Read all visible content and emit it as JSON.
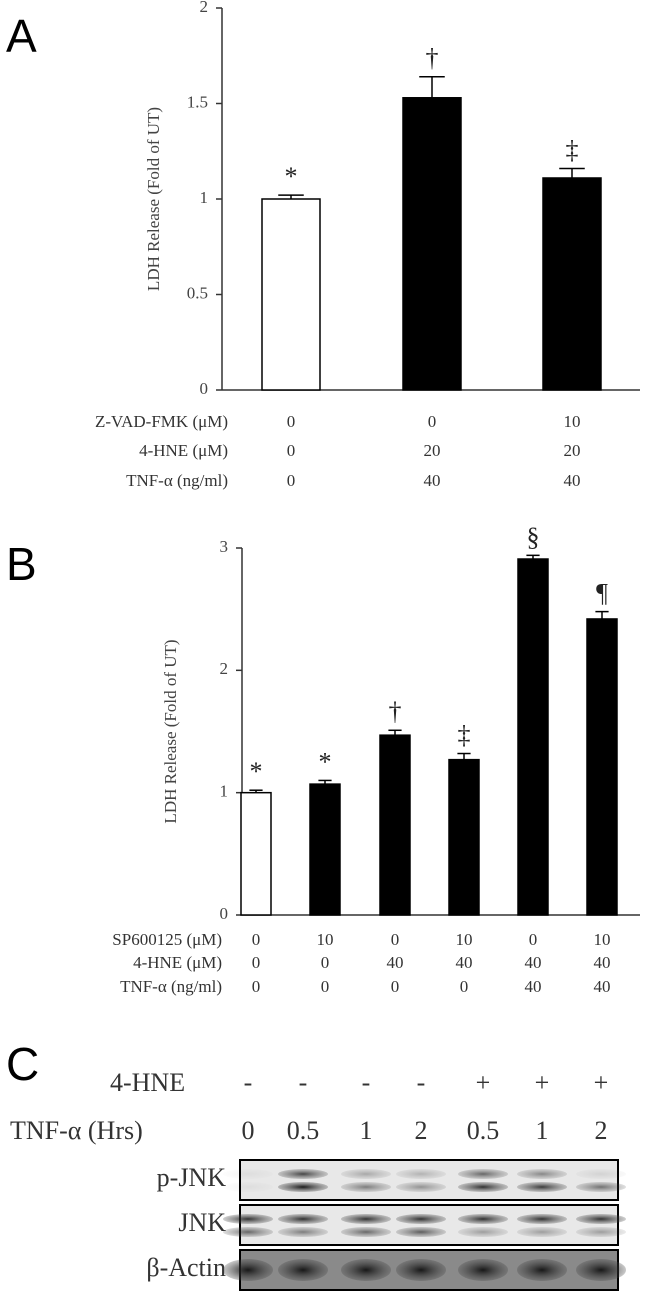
{
  "chart_data": [
    {
      "type": "bar",
      "panel": "A",
      "ylabel": "LDH Release (Fold of UT)",
      "values": [
        1.0,
        1.53,
        1.11
      ],
      "errors": [
        0.02,
        0.11,
        0.05
      ],
      "colors": [
        "#ffffff",
        "#000000",
        "#000000"
      ],
      "annotations": [
        "*",
        "†",
        "‡"
      ],
      "ylim": [
        0,
        2
      ],
      "yticks": [
        0,
        0.5,
        1,
        1.5,
        2
      ],
      "conditions": [
        {
          "label": "Z-VAD-FMK (μM)",
          "values": [
            "0",
            "0",
            "10"
          ]
        },
        {
          "label": "4-HNE (μM)",
          "values": [
            "0",
            "20",
            "20"
          ]
        },
        {
          "label": "TNF-α (ng/ml)",
          "values": [
            "0",
            "40",
            "40"
          ]
        }
      ]
    },
    {
      "type": "bar",
      "panel": "B",
      "ylabel": "LDH Release (Fold of UT)",
      "values": [
        1.0,
        1.07,
        1.47,
        1.27,
        2.91,
        2.42
      ],
      "errors": [
        0.02,
        0.03,
        0.04,
        0.05,
        0.03,
        0.06
      ],
      "colors": [
        "#ffffff",
        "#000000",
        "#000000",
        "#000000",
        "#000000",
        "#000000"
      ],
      "annotations": [
        "*",
        "*",
        "†",
        "‡",
        "§",
        "¶"
      ],
      "ylim": [
        0,
        3
      ],
      "yticks": [
        0,
        1,
        2,
        3
      ],
      "conditions": [
        {
          "label": "SP600125 (μM)",
          "values": [
            "0",
            "10",
            "0",
            "10",
            "0",
            "10"
          ]
        },
        {
          "label": "4-HNE (μM)",
          "values": [
            "0",
            "0",
            "40",
            "40",
            "40",
            "40"
          ]
        },
        {
          "label": "TNF-α (ng/ml)",
          "values": [
            "0",
            "0",
            "0",
            "0",
            "40",
            "40"
          ]
        }
      ]
    }
  ],
  "blot": {
    "panel": "C",
    "treatments": [
      {
        "label": "4-HNE",
        "values": [
          "-",
          "-",
          "-",
          "-",
          "+",
          "+",
          "+"
        ]
      },
      {
        "label": "TNF-α (Hrs)",
        "values": [
          "0",
          "0.5",
          "1",
          "2",
          "0.5",
          "1",
          "2"
        ]
      }
    ],
    "rows": [
      "p-JNK",
      "JNK",
      "β-Actin"
    ]
  }
}
